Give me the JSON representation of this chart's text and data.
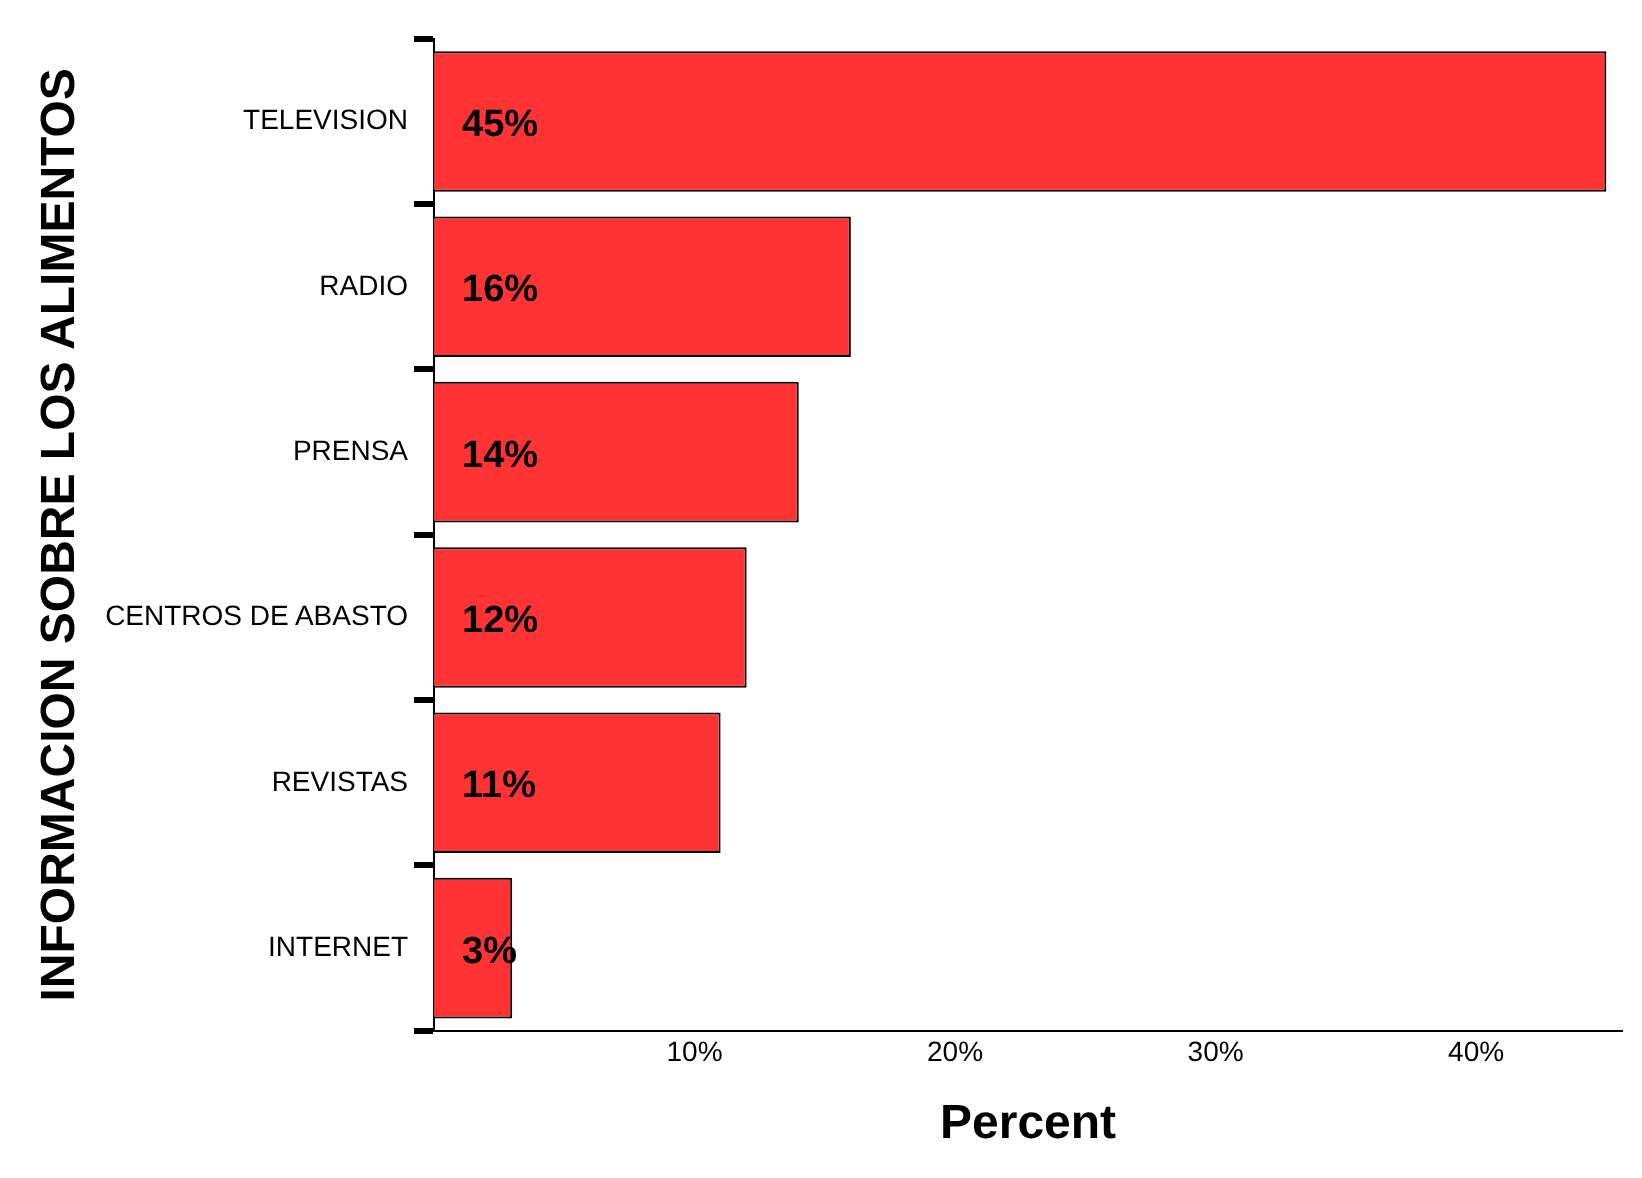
{
  "chart_data": {
    "type": "bar",
    "orientation": "horizontal",
    "ylabel": "INFORMACION SOBRE LOS ALIMENTOS",
    "xlabel": "Percent",
    "categories": [
      "TELEVISION",
      "RADIO",
      "PRENSA",
      "CENTROS DE ABASTO",
      "REVISTAS",
      "INTERNET"
    ],
    "values": [
      45,
      16,
      14,
      12,
      11,
      3
    ],
    "color": "#ff3333",
    "value_labels": [
      "45%",
      "16%",
      "14%",
      "12%",
      "11%",
      "3%"
    ],
    "xlim": [
      0,
      45.6
    ],
    "xticks": [
      {
        "value": 10,
        "label": "10%"
      },
      {
        "value": 20,
        "label": "20%"
      },
      {
        "value": 30,
        "label": "30%"
      },
      {
        "value": 40,
        "label": "40%"
      }
    ],
    "grid": false,
    "legend": false
  }
}
